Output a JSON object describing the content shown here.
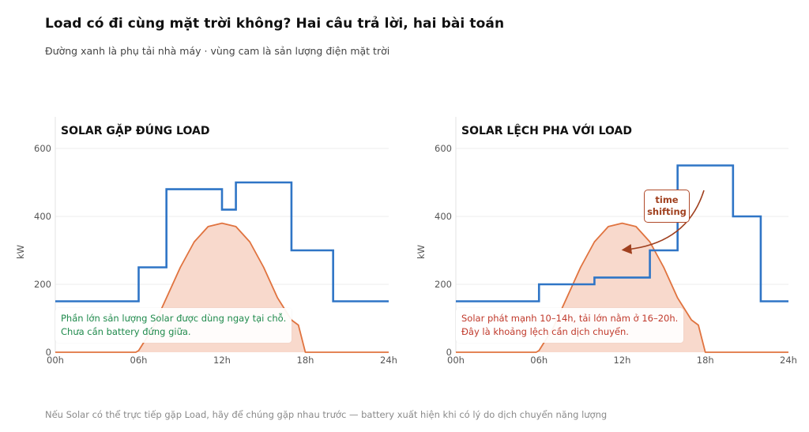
{
  "header": {
    "title": "Load có đi cùng mặt trời không? Hai câu trả lời, hai bài toán",
    "subtitle": "Đường xanh là phụ tải nhà máy · vùng cam là sản lượng điện mặt trời"
  },
  "footer": "Nếu Solar có thể trực tiếp gặp Load, hãy để chúng gặp nhau trước — battery xuất hiện khi có lý do dịch chuyển năng lượng",
  "colors": {
    "load": "#2f75c6",
    "solar_line": "#e0733f",
    "solar_fill": "#f8d9cc",
    "grid": "#ececec"
  },
  "panels": [
    {
      "title": "SOLAR GẶP ĐÚNG LOAD",
      "note_lines": [
        "Phần lớn sản lượng Solar được dùng ngay tại chỗ.",
        "Chưa cần battery đứng giữa."
      ],
      "note_color": "green"
    },
    {
      "title": "SOLAR LỆCH PHA VỚI LOAD",
      "note_lines": [
        "Solar phát mạnh 10–14h, tải lớn nằm ở 16–20h.",
        "Đây là khoảng lệch cần dịch chuyển."
      ],
      "note_color": "red",
      "annotation_lines": [
        "time",
        "shifting"
      ]
    }
  ],
  "chart_data": [
    {
      "type": "area",
      "title": "SOLAR GẶP ĐÚNG LOAD",
      "xlabel": "",
      "ylabel": "kW",
      "xlim": [
        0,
        24
      ],
      "ylim": [
        0,
        600
      ],
      "x_ticks": [
        0,
        6,
        12,
        18,
        24
      ],
      "x_tick_labels": [
        "00h",
        "06h",
        "12h",
        "18h",
        "24h"
      ],
      "y_ticks": [
        0,
        200,
        400,
        600
      ],
      "grid": true,
      "series": [
        {
          "kind": "step",
          "segments": [
            [
              0,
              6,
              150
            ],
            [
              6,
              8,
              250
            ],
            [
              8,
              12,
              480
            ],
            [
              12,
              13,
              420
            ],
            [
              13,
              17,
              500
            ],
            [
              17,
              20,
              300
            ],
            [
              20,
              24,
              150
            ]
          ]
        },
        {
          "kind": "area",
          "x": [
            0,
            5.8,
            6,
            7,
            8,
            9,
            10,
            11,
            12,
            13,
            14,
            15,
            16,
            17,
            17.5,
            18,
            24
          ],
          "y": [
            0,
            0,
            5,
            70,
            160,
            250,
            325,
            370,
            380,
            370,
            325,
            250,
            160,
            95,
            80,
            0,
            0
          ]
        }
      ]
    },
    {
      "type": "area",
      "title": "SOLAR LỆCH PHA VỚI LOAD",
      "xlabel": "",
      "ylabel": "kW",
      "xlim": [
        0,
        24
      ],
      "ylim": [
        0,
        600
      ],
      "x_ticks": [
        0,
        6,
        12,
        18,
        24
      ],
      "x_tick_labels": [
        "00h",
        "06h",
        "12h",
        "18h",
        "24h"
      ],
      "y_ticks": [
        0,
        200,
        400,
        600
      ],
      "grid": true,
      "series": [
        {
          "kind": "step",
          "segments": [
            [
              0,
              6,
              150
            ],
            [
              6,
              10,
              200
            ],
            [
              10,
              14,
              220
            ],
            [
              14,
              16,
              300
            ],
            [
              16,
              20,
              550
            ],
            [
              20,
              22,
              400
            ],
            [
              22,
              24,
              150
            ]
          ]
        },
        {
          "kind": "area",
          "x": [
            0,
            5.8,
            6,
            7,
            8,
            9,
            10,
            11,
            12,
            13,
            14,
            15,
            16,
            17,
            17.5,
            18,
            24
          ],
          "y": [
            0,
            0,
            5,
            70,
            160,
            250,
            325,
            370,
            380,
            370,
            325,
            250,
            160,
            95,
            80,
            0,
            0
          ]
        }
      ],
      "annotation": "time shifting"
    }
  ]
}
